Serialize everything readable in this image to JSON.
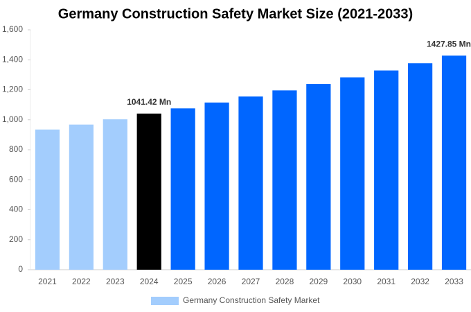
{
  "chart_data": {
    "type": "bar",
    "title": "Germany Construction Safety Market Size (2021-2033)",
    "categories": [
      "2021",
      "2022",
      "2023",
      "2024",
      "2025",
      "2026",
      "2027",
      "2028",
      "2029",
      "2030",
      "2031",
      "2032",
      "2033"
    ],
    "values": [
      935,
      968,
      1003,
      1041.42,
      1076,
      1115,
      1155,
      1196,
      1239,
      1283,
      1329,
      1377,
      1427.85
    ],
    "value_labels": [
      null,
      null,
      null,
      "1041.42 Mn",
      null,
      null,
      null,
      null,
      null,
      null,
      null,
      null,
      "1427.85 Mn"
    ],
    "colors": [
      "#a3cdfd",
      "#a3cdfd",
      "#a3cdfd",
      "#000000",
      "#0066ff",
      "#0066ff",
      "#0066ff",
      "#0066ff",
      "#0066ff",
      "#0066ff",
      "#0066ff",
      "#0066ff",
      "#0066ff"
    ],
    "legend": {
      "name": "Germany Construction Safety Market",
      "color": "#a3cdfd"
    },
    "ylim": [
      0,
      1600
    ],
    "yticks": [
      0,
      200,
      400,
      600,
      800,
      {
        "value": 1000,
        "label": "1,000"
      },
      {
        "value": 1200,
        "label": "1,200"
      },
      {
        "value": 1400,
        "label": "1,400"
      },
      {
        "value": 1600,
        "label": "1,600"
      }
    ],
    "grid": false
  }
}
